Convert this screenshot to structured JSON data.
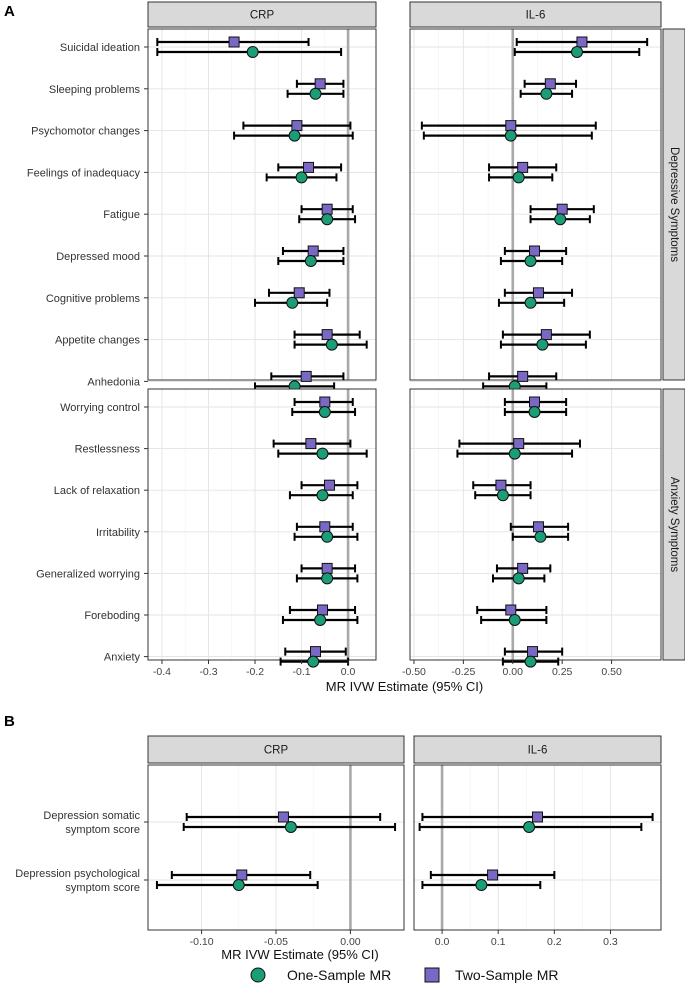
{
  "figure": {
    "panel_letters": [
      "A",
      "B"
    ],
    "legend": [
      {
        "label": "One-Sample MR",
        "shape": "circle",
        "color": "#1b9e77"
      },
      {
        "label": "Two-Sample MR",
        "shape": "square",
        "color": "#7b68c4"
      }
    ]
  },
  "chart_data": [
    {
      "type": "forest",
      "panel": "A",
      "columns": [
        "CRP",
        "IL-6"
      ],
      "row_groups": [
        "Depressive Symptoms",
        "Anxiety Symptoms"
      ],
      "xlabel": "MR IVW Estimate (95% CI)",
      "vline": 0,
      "xaxes": [
        {
          "xlim": [
            -0.43,
            0.06
          ],
          "ticks": [
            -0.4,
            -0.3,
            -0.2,
            -0.1,
            0.0
          ],
          "tick_labels": [
            "-0.4",
            "-0.3",
            "-0.2",
            "-0.1",
            "0.0"
          ]
        },
        {
          "xlim": [
            -0.52,
            0.75
          ],
          "ticks": [
            -0.5,
            -0.25,
            0.0,
            0.25,
            0.5
          ],
          "tick_labels": [
            "-0.50",
            "-0.25",
            "0.00",
            "0.25",
            "0.50"
          ]
        }
      ],
      "groups": [
        {
          "name": "Depressive Symptoms",
          "rows": [
            {
              "label": "Suicidal ideation",
              "CRP": {
                "two": [
                  -0.245,
                  -0.41,
                  -0.085
                ],
                "one": [
                  -0.205,
                  -0.41,
                  -0.015
                ]
              },
              "IL-6": {
                "two": [
                  0.35,
                  0.02,
                  0.68
                ],
                "one": [
                  0.325,
                  0.01,
                  0.64
                ]
              }
            },
            {
              "label": "Sleeping problems",
              "CRP": {
                "two": [
                  -0.06,
                  -0.11,
                  -0.01
                ],
                "one": [
                  -0.07,
                  -0.13,
                  -0.01
                ]
              },
              "IL-6": {
                "two": [
                  0.19,
                  0.06,
                  0.32
                ],
                "one": [
                  0.17,
                  0.04,
                  0.3
                ]
              }
            },
            {
              "label": "Psychomotor changes",
              "CRP": {
                "two": [
                  -0.11,
                  -0.225,
                  0.005
                ],
                "one": [
                  -0.115,
                  -0.245,
                  0.01
                ]
              },
              "IL-6": {
                "two": [
                  -0.01,
                  -0.46,
                  0.42
                ],
                "one": [
                  -0.01,
                  -0.45,
                  0.4
                ]
              }
            },
            {
              "label": "Feelings of inadequacy",
              "CRP": {
                "two": [
                  -0.085,
                  -0.15,
                  -0.015
                ],
                "one": [
                  -0.1,
                  -0.175,
                  -0.025
                ]
              },
              "IL-6": {
                "two": [
                  0.05,
                  -0.12,
                  0.22
                ],
                "one": [
                  0.03,
                  -0.12,
                  0.2
                ]
              }
            },
            {
              "label": "Fatigue",
              "CRP": {
                "two": [
                  -0.045,
                  -0.1,
                  0.01
                ],
                "one": [
                  -0.045,
                  -0.105,
                  0.015
                ]
              },
              "IL-6": {
                "two": [
                  0.25,
                  0.09,
                  0.41
                ],
                "one": [
                  0.24,
                  0.09,
                  0.39
                ]
              }
            },
            {
              "label": "Depressed mood",
              "CRP": {
                "two": [
                  -0.075,
                  -0.14,
                  -0.01
                ],
                "one": [
                  -0.08,
                  -0.15,
                  -0.01
                ]
              },
              "IL-6": {
                "two": [
                  0.11,
                  -0.04,
                  0.27
                ],
                "one": [
                  0.09,
                  -0.06,
                  0.25
                ]
              }
            },
            {
              "label": "Cognitive problems",
              "CRP": {
                "two": [
                  -0.105,
                  -0.17,
                  -0.04
                ],
                "one": [
                  -0.12,
                  -0.2,
                  -0.045
                ]
              },
              "IL-6": {
                "two": [
                  0.13,
                  -0.04,
                  0.3
                ],
                "one": [
                  0.09,
                  -0.07,
                  0.26
                ]
              }
            },
            {
              "label": "Appetite changes",
              "CRP": {
                "two": [
                  -0.045,
                  -0.115,
                  0.025
                ],
                "one": [
                  -0.035,
                  -0.115,
                  0.04
                ]
              },
              "IL-6": {
                "two": [
                  0.17,
                  -0.05,
                  0.39
                ],
                "one": [
                  0.15,
                  -0.06,
                  0.37
                ]
              }
            },
            {
              "label": "Anhedonia",
              "CRP": {
                "two": [
                  -0.09,
                  -0.165,
                  -0.01
                ],
                "one": [
                  -0.115,
                  -0.2,
                  -0.03
                ]
              },
              "IL-6": {
                "two": [
                  0.05,
                  -0.12,
                  0.22
                ],
                "one": [
                  0.01,
                  -0.15,
                  0.17
                ]
              }
            }
          ]
        },
        {
          "name": "Anxiety Symptoms",
          "rows": [
            {
              "label": "Worrying control",
              "CRP": {
                "two": [
                  -0.05,
                  -0.115,
                  0.01
                ],
                "one": [
                  -0.05,
                  -0.12,
                  0.015
                ]
              },
              "IL-6": {
                "two": [
                  0.11,
                  -0.04,
                  0.27
                ],
                "one": [
                  0.11,
                  -0.04,
                  0.27
                ]
              }
            },
            {
              "label": "Restlessness",
              "CRP": {
                "two": [
                  -0.08,
                  -0.16,
                  0.005
                ],
                "one": [
                  -0.055,
                  -0.15,
                  0.04
                ]
              },
              "IL-6": {
                "two": [
                  0.03,
                  -0.27,
                  0.34
                ],
                "one": [
                  0.01,
                  -0.28,
                  0.3
                ]
              }
            },
            {
              "label": "Lack of relaxation",
              "CRP": {
                "two": [
                  -0.04,
                  -0.1,
                  0.02
                ],
                "one": [
                  -0.055,
                  -0.125,
                  0.01
                ]
              },
              "IL-6": {
                "two": [
                  -0.06,
                  -0.2,
                  0.09
                ],
                "one": [
                  -0.05,
                  -0.19,
                  0.09
                ]
              }
            },
            {
              "label": "Irritability",
              "CRP": {
                "two": [
                  -0.05,
                  -0.11,
                  0.01
                ],
                "one": [
                  -0.045,
                  -0.115,
                  0.02
                ]
              },
              "IL-6": {
                "two": [
                  0.13,
                  -0.01,
                  0.28
                ],
                "one": [
                  0.14,
                  0.0,
                  0.28
                ]
              }
            },
            {
              "label": "Generalized worrying",
              "CRP": {
                "two": [
                  -0.045,
                  -0.1,
                  0.015
                ],
                "one": [
                  -0.045,
                  -0.11,
                  0.02
                ]
              },
              "IL-6": {
                "two": [
                  0.05,
                  -0.08,
                  0.19
                ],
                "one": [
                  0.03,
                  -0.1,
                  0.16
                ]
              }
            },
            {
              "label": "Foreboding",
              "CRP": {
                "two": [
                  -0.055,
                  -0.125,
                  0.015
                ],
                "one": [
                  -0.06,
                  -0.14,
                  0.02
                ]
              },
              "IL-6": {
                "two": [
                  -0.01,
                  -0.18,
                  0.17
                ],
                "one": [
                  0.01,
                  -0.16,
                  0.17
                ]
              }
            },
            {
              "label": "Anxiety",
              "CRP": {
                "two": [
                  -0.07,
                  -0.135,
                  -0.005
                ],
                "one": [
                  -0.075,
                  -0.145,
                  0.0
                ]
              },
              "IL-6": {
                "two": [
                  0.1,
                  -0.04,
                  0.25
                ],
                "one": [
                  0.09,
                  -0.05,
                  0.23
                ]
              }
            }
          ]
        }
      ]
    },
    {
      "type": "forest",
      "panel": "B",
      "columns": [
        "CRP",
        "IL-6"
      ],
      "xlabel": "MR IVW Estimate (95% CI)",
      "vline": 0,
      "xaxes": [
        {
          "xlim": [
            -0.136,
            0.036
          ],
          "ticks": [
            -0.1,
            -0.05,
            0.0
          ],
          "tick_labels": [
            "-0.10",
            "-0.05",
            "0.00"
          ]
        },
        {
          "xlim": [
            -0.05,
            0.39
          ],
          "ticks": [
            0.0,
            0.1,
            0.2,
            0.3
          ],
          "tick_labels": [
            "0.0",
            "0.1",
            "0.2",
            "0.3"
          ]
        }
      ],
      "rows": [
        {
          "label": [
            "Depression somatic",
            "symptom score"
          ],
          "CRP": {
            "two": [
              -0.045,
              -0.11,
              0.02
            ],
            "one": [
              -0.04,
              -0.112,
              0.03
            ]
          },
          "IL-6": {
            "two": [
              0.17,
              -0.035,
              0.375
            ],
            "one": [
              0.155,
              -0.04,
              0.355
            ]
          }
        },
        {
          "label": [
            "Depression psychological",
            "symptom score"
          ],
          "CRP": {
            "two": [
              -0.073,
              -0.12,
              -0.027
            ],
            "one": [
              -0.075,
              -0.13,
              -0.022
            ]
          },
          "IL-6": {
            "two": [
              0.09,
              -0.02,
              0.2
            ],
            "one": [
              0.07,
              -0.035,
              0.175
            ]
          }
        }
      ]
    }
  ]
}
